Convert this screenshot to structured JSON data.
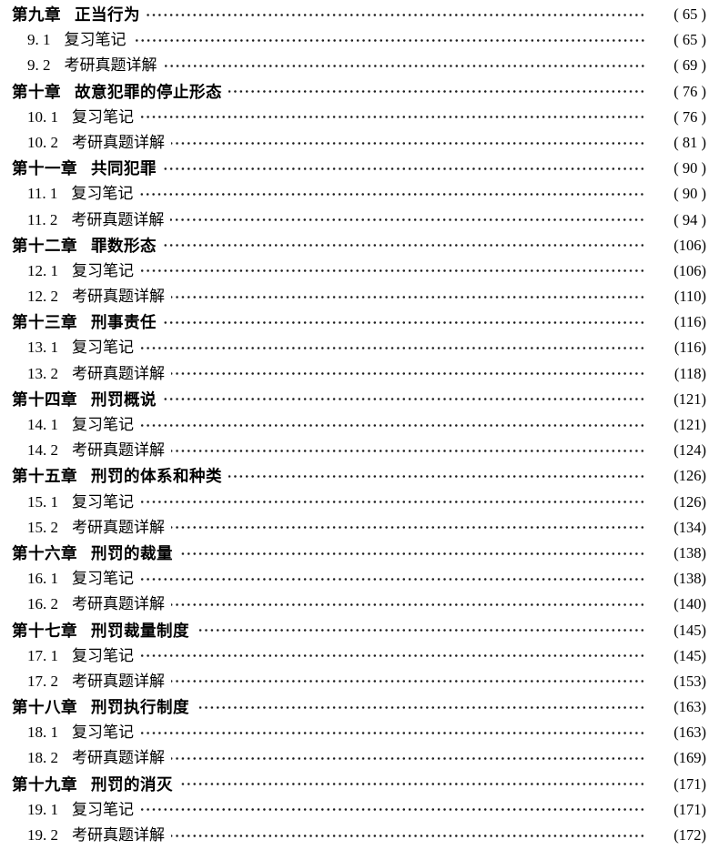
{
  "colors": {
    "background": "#ffffff",
    "text": "#000000",
    "dot_leader": "#1c1c1c"
  },
  "toc": {
    "entries": [
      {
        "level": "chapter",
        "num": "第九章",
        "title": "正当行为",
        "page": "( 65 )"
      },
      {
        "level": "section",
        "num": "9. 1",
        "title": "复习笔记",
        "page": "( 65 )"
      },
      {
        "level": "section",
        "num": "9. 2",
        "title": "考研真题详解",
        "page": "( 69 )"
      },
      {
        "level": "chapter",
        "num": "第十章",
        "title": "故意犯罪的停止形态",
        "page": "( 76 )"
      },
      {
        "level": "section",
        "num": "10. 1",
        "title": "复习笔记",
        "page": "( 76 )"
      },
      {
        "level": "section",
        "num": "10. 2",
        "title": "考研真题详解",
        "page": "( 81 )"
      },
      {
        "level": "chapter",
        "num": "第十一章",
        "title": "共同犯罪",
        "page": "( 90 )"
      },
      {
        "level": "section",
        "num": "11. 1",
        "title": "复习笔记",
        "page": "( 90 )"
      },
      {
        "level": "section",
        "num": "11. 2",
        "title": "考研真题详解",
        "page": "( 94 )"
      },
      {
        "level": "chapter",
        "num": "第十二章",
        "title": "罪数形态",
        "page": "(106)"
      },
      {
        "level": "section",
        "num": "12. 1",
        "title": "复习笔记",
        "page": "(106)"
      },
      {
        "level": "section",
        "num": "12. 2",
        "title": "考研真题详解",
        "page": "(110)"
      },
      {
        "level": "chapter",
        "num": "第十三章",
        "title": "刑事责任",
        "page": "(116)"
      },
      {
        "level": "section",
        "num": "13. 1",
        "title": "复习笔记",
        "page": "(116)"
      },
      {
        "level": "section",
        "num": "13. 2",
        "title": "考研真题详解",
        "page": "(118)"
      },
      {
        "level": "chapter",
        "num": "第十四章",
        "title": "刑罚概说",
        "page": "(121)"
      },
      {
        "level": "section",
        "num": "14. 1",
        "title": "复习笔记",
        "page": "(121)"
      },
      {
        "level": "section",
        "num": "14. 2",
        "title": "考研真题详解",
        "page": "(124)"
      },
      {
        "level": "chapter",
        "num": "第十五章",
        "title": "刑罚的体系和种类",
        "page": "(126)"
      },
      {
        "level": "section",
        "num": "15. 1",
        "title": "复习笔记",
        "page": "(126)"
      },
      {
        "level": "section",
        "num": "15. 2",
        "title": "考研真题详解",
        "page": "(134)"
      },
      {
        "level": "chapter",
        "num": "第十六章",
        "title": "刑罚的裁量",
        "page": "(138)"
      },
      {
        "level": "section",
        "num": "16. 1",
        "title": "复习笔记",
        "page": "(138)"
      },
      {
        "level": "section",
        "num": "16. 2",
        "title": "考研真题详解",
        "page": "(140)"
      },
      {
        "level": "chapter",
        "num": "第十七章",
        "title": "刑罚裁量制度",
        "page": "(145)"
      },
      {
        "level": "section",
        "num": "17. 1",
        "title": "复习笔记",
        "page": "(145)"
      },
      {
        "level": "section",
        "num": "17. 2",
        "title": "考研真题详解",
        "page": "(153)"
      },
      {
        "level": "chapter",
        "num": "第十八章",
        "title": "刑罚执行制度",
        "page": "(163)"
      },
      {
        "level": "section",
        "num": "18. 1",
        "title": "复习笔记",
        "page": "(163)"
      },
      {
        "level": "section",
        "num": "18. 2",
        "title": "考研真题详解",
        "page": "(169)"
      },
      {
        "level": "chapter",
        "num": "第十九章",
        "title": "刑罚的消灭",
        "page": "(171)"
      },
      {
        "level": "section",
        "num": "19. 1",
        "title": "复习笔记",
        "page": "(171)"
      },
      {
        "level": "section",
        "num": "19. 2",
        "title": "考研真题详解",
        "page": "(172)"
      }
    ]
  }
}
